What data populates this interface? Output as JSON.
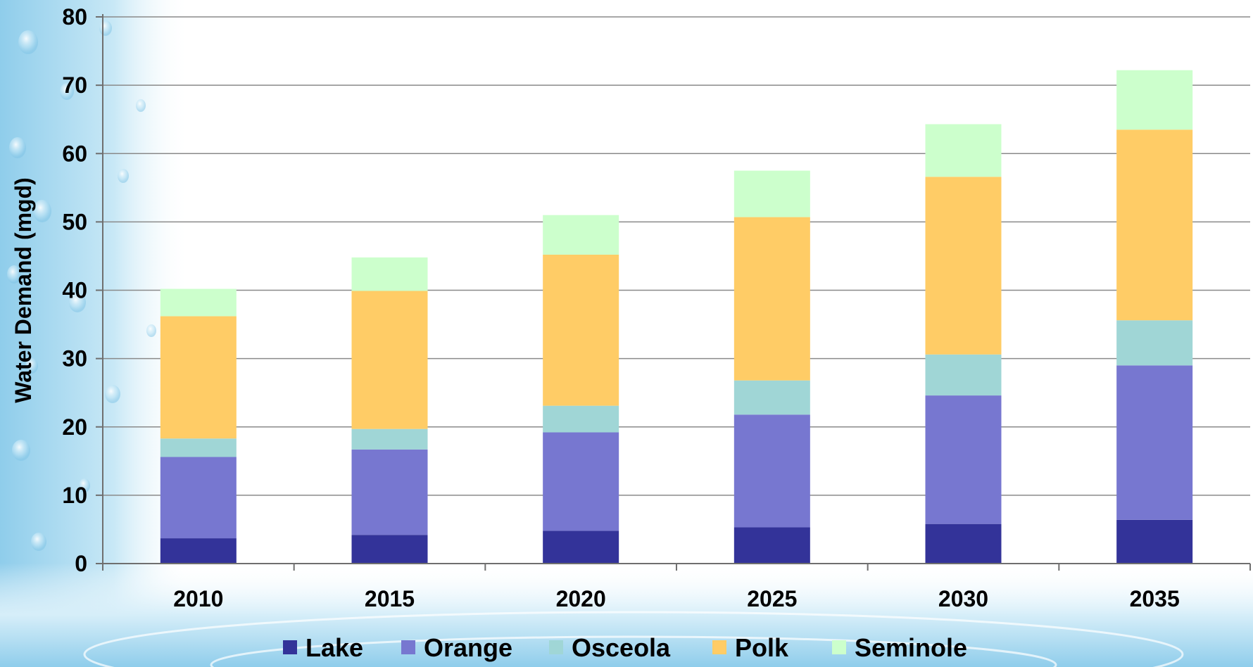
{
  "chart_data": {
    "type": "bar",
    "stacked": true,
    "title": "",
    "xlabel": "",
    "ylabel": "Water Demand (mgd)",
    "ylim": [
      0,
      80
    ],
    "yticks": [
      0,
      10,
      20,
      30,
      40,
      50,
      60,
      70,
      80
    ],
    "grid": true,
    "legend_position": "bottom",
    "categories": [
      "2010",
      "2015",
      "2020",
      "2025",
      "2030",
      "2035"
    ],
    "series": [
      {
        "name": "Lake",
        "color": "#333399",
        "values": [
          3.7,
          4.2,
          4.8,
          5.3,
          5.8,
          6.4
        ]
      },
      {
        "name": "Orange",
        "color": "#7777D0",
        "values": [
          11.9,
          12.5,
          14.4,
          16.5,
          18.8,
          22.6
        ]
      },
      {
        "name": "Osceola",
        "color": "#A0D6D6",
        "values": [
          2.7,
          3.0,
          3.9,
          5.0,
          6.0,
          6.6
        ]
      },
      {
        "name": "Polk",
        "color": "#FFCC66",
        "values": [
          17.9,
          20.2,
          22.1,
          23.9,
          26.0,
          27.9
        ]
      },
      {
        "name": "Seminole",
        "color": "#CCFFCC",
        "values": [
          4.0,
          4.9,
          5.8,
          6.8,
          7.7,
          8.7
        ]
      }
    ]
  }
}
